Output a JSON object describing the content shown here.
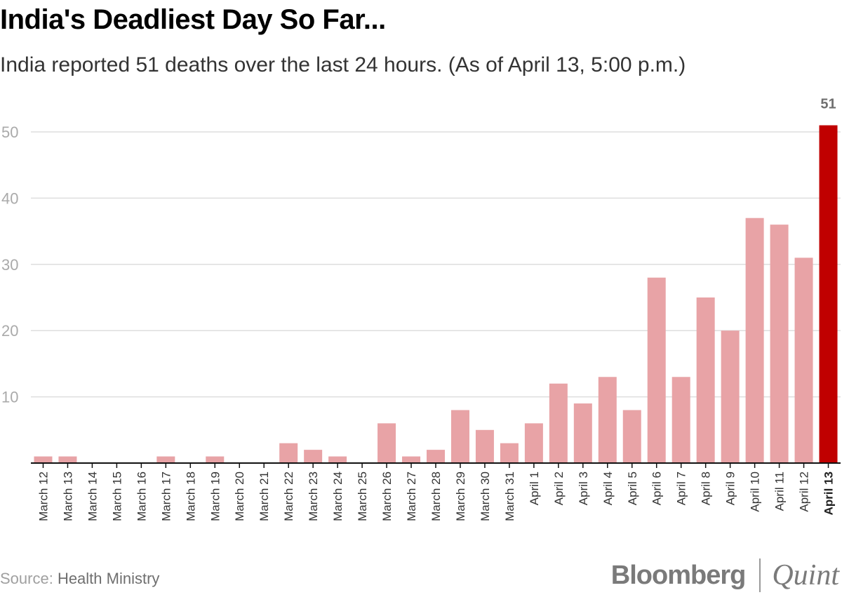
{
  "title": "India's Deadliest Day So Far...",
  "subtitle": "India reported 51 deaths over the last 24 hours. (As of April 13, 5:00 p.m.)",
  "source_label": "Source: ",
  "source_value": "Health Ministry",
  "brand": {
    "left": "Bloomberg",
    "right": "Quint"
  },
  "colors": {
    "bar": "#e8a3a6",
    "highlight": "#c00000",
    "grid": "#dedede",
    "axis": "#111111",
    "tick": "#aaaaaa"
  },
  "chart_data": {
    "type": "bar",
    "title": "India's Deadliest Day So Far...",
    "xlabel": "",
    "ylabel": "",
    "ylim": [
      0,
      50
    ],
    "yticks": [
      10,
      20,
      30,
      40,
      50
    ],
    "grid": true,
    "categories": [
      "March 12",
      "March 13",
      "March 14",
      "March 15",
      "March 16",
      "March 17",
      "March 18",
      "March 19",
      "March 20",
      "March 21",
      "March 22",
      "March 23",
      "March 24",
      "March 25",
      "March 26",
      "March 27",
      "March 28",
      "March 29",
      "March 30",
      "March 31",
      "April 1",
      "April 2",
      "April 3",
      "April 4",
      "April 5",
      "April 6",
      "April 7",
      "April 8",
      "April 9",
      "April 10",
      "April 11",
      "April 12",
      "April 13"
    ],
    "values": [
      1,
      1,
      0,
      0,
      0,
      1,
      0,
      1,
      0,
      0,
      3,
      2,
      1,
      0,
      6,
      1,
      2,
      8,
      5,
      3,
      6,
      12,
      9,
      13,
      8,
      28,
      13,
      25,
      20,
      37,
      36,
      31,
      51
    ],
    "highlight_index": 32,
    "highlight_label": "51"
  }
}
